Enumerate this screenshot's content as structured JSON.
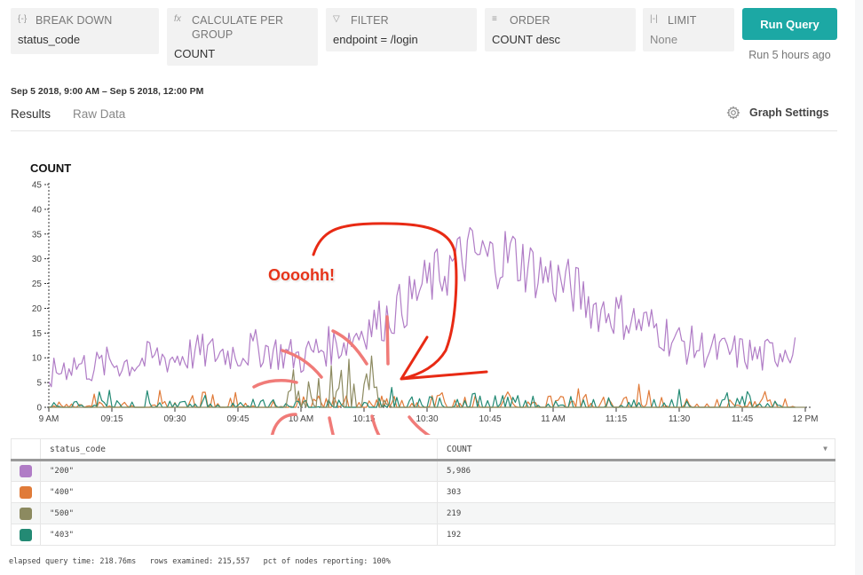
{
  "query_builder": {
    "break_down": {
      "icon": "{-}",
      "label": "BREAK DOWN",
      "value": "status_code"
    },
    "calculate": {
      "icon": "fx",
      "label": "CALCULATE PER GROUP",
      "value": "COUNT"
    },
    "filter": {
      "icon": "▽",
      "label": "FILTER",
      "value": "endpoint = /login"
    },
    "order": {
      "icon": "≡",
      "label": "ORDER",
      "value": "COUNT desc"
    },
    "limit": {
      "icon": "|-|",
      "label": "LIMIT",
      "value": "None"
    },
    "run_button": "Run Query",
    "run_status": "Run 5 hours ago"
  },
  "time_range": "Sep 5 2018, 9:00 AM – Sep 5 2018, 12:00 PM",
  "tabs": [
    {
      "label": "Results",
      "active": true
    },
    {
      "label": "Raw Data",
      "active": false
    }
  ],
  "graph_settings": "Graph Settings",
  "annotation": {
    "text": "Oooohh!",
    "color": "#e63319"
  },
  "chart_data": {
    "type": "line",
    "title": "COUNT",
    "xlabel": "",
    "ylabel": "COUNT",
    "ylim": [
      0,
      45
    ],
    "yticks": [
      0,
      5,
      10,
      15,
      20,
      25,
      30,
      35,
      40,
      45
    ],
    "xticks": [
      "9 AM",
      "09:15",
      "09:30",
      "09:45",
      "10 AM",
      "10:15",
      "10:30",
      "10:45",
      "11 AM",
      "11:15",
      "11:30",
      "11:45",
      "12 PM"
    ],
    "xrange_minutes": [
      0,
      180
    ],
    "grid": false,
    "legend_position": "table-below",
    "series": [
      {
        "name": "\"200\"",
        "color": "#b07cc6",
        "keypoints": [
          [
            0,
            6
          ],
          [
            5,
            9
          ],
          [
            10,
            8
          ],
          [
            15,
            9
          ],
          [
            20,
            9
          ],
          [
            25,
            10
          ],
          [
            30,
            10
          ],
          [
            35,
            11
          ],
          [
            40,
            11
          ],
          [
            45,
            11
          ],
          [
            50,
            12
          ],
          [
            55,
            11
          ],
          [
            60,
            10
          ],
          [
            65,
            12
          ],
          [
            70,
            13
          ],
          [
            75,
            16
          ],
          [
            80,
            18
          ],
          [
            85,
            21
          ],
          [
            90,
            25
          ],
          [
            95,
            28
          ],
          [
            100,
            31
          ],
          [
            105,
            30
          ],
          [
            110,
            31
          ],
          [
            115,
            28
          ],
          [
            120,
            26
          ],
          [
            125,
            24
          ],
          [
            130,
            20
          ],
          [
            135,
            19
          ],
          [
            140,
            17
          ],
          [
            145,
            16
          ],
          [
            150,
            13
          ],
          [
            155,
            12
          ],
          [
            160,
            11
          ],
          [
            165,
            11
          ],
          [
            170,
            10
          ],
          [
            175,
            12
          ],
          [
            178,
            13
          ]
        ],
        "jitter": 4
      },
      {
        "name": "\"400\"",
        "color": "#e07b39",
        "keypoints": [
          [
            0,
            0.5
          ],
          [
            30,
            0.5
          ],
          [
            50,
            1
          ],
          [
            60,
            1
          ],
          [
            75,
            1
          ],
          [
            90,
            1
          ],
          [
            100,
            1.5
          ],
          [
            120,
            1.2
          ],
          [
            140,
            1
          ],
          [
            160,
            0.8
          ],
          [
            178,
            0.8
          ]
        ],
        "jitter": 1.5
      },
      {
        "name": "\"500\"",
        "color": "#8c8a60",
        "keypoints": [
          [
            0,
            0
          ],
          [
            55,
            0
          ],
          [
            58,
            2
          ],
          [
            62,
            3
          ],
          [
            66,
            3.5
          ],
          [
            70,
            4
          ],
          [
            74,
            5
          ],
          [
            77,
            6
          ],
          [
            79,
            1
          ],
          [
            82,
            0
          ],
          [
            180,
            0
          ]
        ],
        "jitter": 2.5
      },
      {
        "name": "\"403\"",
        "color": "#238a74",
        "keypoints": [
          [
            0,
            0.6
          ],
          [
            40,
            0.6
          ],
          [
            60,
            0.8
          ],
          [
            80,
            0.8
          ],
          [
            100,
            1.2
          ],
          [
            120,
            1
          ],
          [
            150,
            0.8
          ],
          [
            165,
            1
          ],
          [
            178,
            0.8
          ]
        ],
        "jitter": 1.5
      }
    ]
  },
  "table": {
    "columns": [
      "status_code",
      "COUNT"
    ],
    "rows": [
      {
        "status_code": "\"200\"",
        "count": "5,986",
        "color": "#b07cc6"
      },
      {
        "status_code": "\"400\"",
        "count": "303",
        "color": "#e07b39"
      },
      {
        "status_code": "\"500\"",
        "count": "219",
        "color": "#8c8a60"
      },
      {
        "status_code": "\"403\"",
        "count": "192",
        "color": "#238a74"
      }
    ],
    "sort_indicator": "▼"
  },
  "footer": {
    "elapsed": "elapsed query time: 218.76ms",
    "rows_examined": "rows examined: 215,557",
    "nodes": "pct of nodes reporting: 100%"
  }
}
